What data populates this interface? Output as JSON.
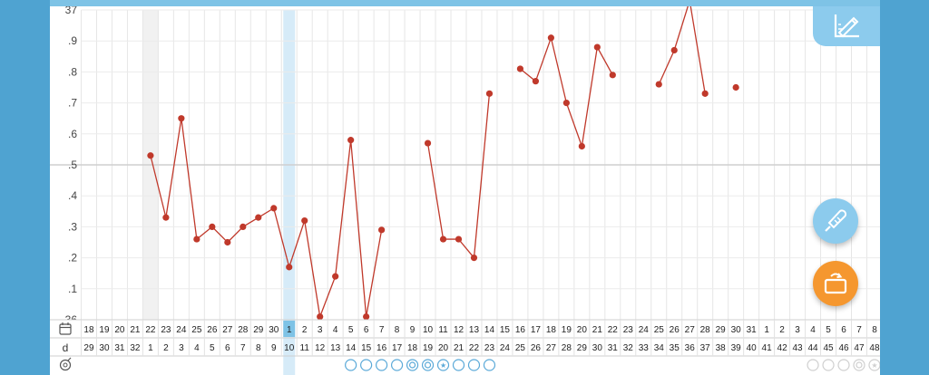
{
  "y_axis_labels": [
    "37",
    ".9",
    ".8",
    ".7",
    ".6",
    ".5",
    ".4",
    ".3",
    ".2",
    ".1",
    "36"
  ],
  "day_row_label": "d",
  "dates": [
    {
      "t": "18",
      "c": "normal"
    },
    {
      "t": "19",
      "c": "normal"
    },
    {
      "t": "20",
      "c": "normal"
    },
    {
      "t": "21",
      "c": "normal"
    },
    {
      "t": "22",
      "c": "normal"
    },
    {
      "t": "23",
      "c": "blue"
    },
    {
      "t": "24",
      "c": "red"
    },
    {
      "t": "25",
      "c": "normal"
    },
    {
      "t": "26",
      "c": "normal"
    },
    {
      "t": "27",
      "c": "normal"
    },
    {
      "t": "28",
      "c": "normal"
    },
    {
      "t": "29",
      "c": "normal"
    },
    {
      "t": "30",
      "c": "blue"
    },
    {
      "t": "1",
      "c": "current"
    },
    {
      "t": "2",
      "c": "normal"
    },
    {
      "t": "3",
      "c": "normal"
    },
    {
      "t": "4",
      "c": "normal"
    },
    {
      "t": "5",
      "c": "normal"
    },
    {
      "t": "6",
      "c": "normal"
    },
    {
      "t": "7",
      "c": "blue"
    },
    {
      "t": "8",
      "c": "red"
    },
    {
      "t": "9",
      "c": "normal"
    },
    {
      "t": "10",
      "c": "normal"
    },
    {
      "t": "11",
      "c": "normal"
    },
    {
      "t": "12",
      "c": "normal"
    },
    {
      "t": "13",
      "c": "normal"
    },
    {
      "t": "14",
      "c": "blue"
    },
    {
      "t": "15",
      "c": "red"
    },
    {
      "t": "16",
      "c": "normal"
    },
    {
      "t": "17",
      "c": "normal"
    },
    {
      "t": "18",
      "c": "normal"
    },
    {
      "t": "19",
      "c": "normal"
    },
    {
      "t": "20",
      "c": "normal"
    },
    {
      "t": "21",
      "c": "blue"
    },
    {
      "t": "22",
      "c": "red"
    },
    {
      "t": "23",
      "c": "normal"
    },
    {
      "t": "24",
      "c": "normal"
    },
    {
      "t": "25",
      "c": "normal"
    },
    {
      "t": "26",
      "c": "normal"
    },
    {
      "t": "27",
      "c": "normal"
    },
    {
      "t": "28",
      "c": "blue"
    },
    {
      "t": "29",
      "c": "red"
    },
    {
      "t": "30",
      "c": "normal"
    },
    {
      "t": "31",
      "c": "normal"
    },
    {
      "t": "1",
      "c": "normal"
    },
    {
      "t": "2",
      "c": "normal"
    },
    {
      "t": "3",
      "c": "normal"
    },
    {
      "t": "4",
      "c": "blue"
    },
    {
      "t": "5",
      "c": "red"
    },
    {
      "t": "6",
      "c": "normal"
    },
    {
      "t": "7",
      "c": "normal"
    },
    {
      "t": "8",
      "c": "normal"
    }
  ],
  "cycle_days": [
    "29",
    "30",
    "31",
    "32",
    "1",
    "2",
    "3",
    "4",
    "5",
    "6",
    "7",
    "8",
    "9",
    "10",
    "11",
    "12",
    "13",
    "14",
    "15",
    "16",
    "17",
    "18",
    "19",
    "20",
    "21",
    "22",
    "23",
    "24",
    "25",
    "26",
    "27",
    "28",
    "29",
    "30",
    "31",
    "32",
    "33",
    "34",
    "35",
    "36",
    "37",
    "38",
    "39",
    "40",
    "41",
    "42",
    "43",
    "44",
    "45",
    "46",
    "47",
    "48"
  ],
  "marks": {
    "2": "moon-faint",
    "3": "moon-faint",
    "4": "moon",
    "5": "moon",
    "6": "moon",
    "7": "moon",
    "8": "moon",
    "9": "moon",
    "17": "circle",
    "18": "circle",
    "19": "circle",
    "20": "circle",
    "21": "circle-double",
    "22": "circle-double",
    "23": "circle-star",
    "24": "circle",
    "25": "circle",
    "26": "circle",
    "37": "moon-faint",
    "38": "moon-faint",
    "39": "moon-faint",
    "40": "moon-faint",
    "41": "moon-faint",
    "42": "moon-faint",
    "47": "circle-faint",
    "48": "circle-faint",
    "49": "circle-faint",
    "50": "circle-double-faint",
    "51": "circle-star-faint"
  },
  "chart_data": {
    "type": "line",
    "ylim": [
      36.0,
      37.0
    ],
    "line_color": "#c0392b",
    "x": [
      "18",
      "19",
      "20",
      "21",
      "22",
      "23",
      "24",
      "25",
      "26",
      "27",
      "28",
      "29",
      "30",
      "1",
      "2",
      "3",
      "4",
      "5",
      "6",
      "7",
      "8",
      "9",
      "10",
      "11",
      "12",
      "13",
      "14",
      "15",
      "16",
      "17",
      "18",
      "19",
      "20",
      "21",
      "22",
      "23",
      "24",
      "25",
      "26",
      "27",
      "28",
      "29",
      "30",
      "31",
      "1",
      "2",
      "3",
      "4",
      "5",
      "6",
      "7",
      "8"
    ],
    "values": [
      null,
      null,
      null,
      null,
      36.53,
      36.33,
      36.65,
      36.26,
      36.3,
      36.25,
      36.3,
      36.33,
      36.36,
      36.17,
      36.32,
      36.01,
      36.14,
      36.58,
      36.01,
      36.29,
      null,
      null,
      36.57,
      36.26,
      36.26,
      36.2,
      36.73,
      null,
      36.81,
      36.77,
      36.91,
      36.7,
      36.56,
      36.88,
      36.79,
      null,
      null,
      36.76,
      36.87,
      37.03,
      36.73,
      null,
      36.75,
      null,
      null,
      null,
      null,
      null,
      null,
      null,
      null,
      null
    ]
  },
  "colors": {
    "accent_blue": "#4fa3d1",
    "line": "#c0392b",
    "fab_blue": "#8ccbed",
    "fab_orange": "#f5972f",
    "today_highlight": "#d6ebf8"
  },
  "icons": {
    "calendar": "calendar-icon",
    "chart_settings": "chart-axis-pencil-icon",
    "thermometer": "thermometer-icon",
    "rotate": "rotate-screen-icon",
    "row3": "magnify-circle-icon"
  }
}
